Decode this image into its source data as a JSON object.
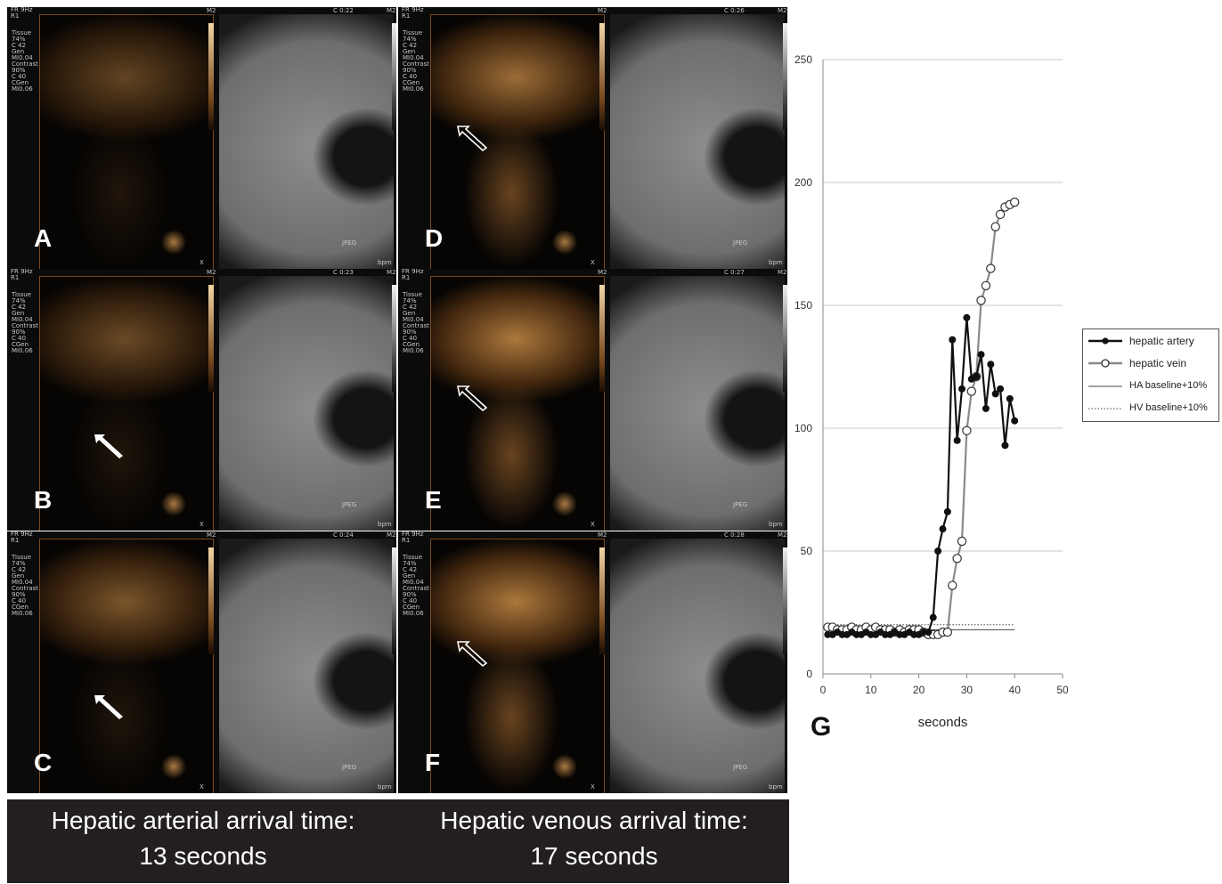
{
  "panels": [
    {
      "letter": "A",
      "clock": "C 0:22",
      "arrow": "none"
    },
    {
      "letter": "B",
      "clock": "C 0:23",
      "arrow": "solid"
    },
    {
      "letter": "C",
      "clock": "C 0:24",
      "arrow": "solid"
    },
    {
      "letter": "D",
      "clock": "C 0:26",
      "arrow": "hollow"
    },
    {
      "letter": "E",
      "clock": "C 0:27",
      "arrow": "hollow"
    },
    {
      "letter": "F",
      "clock": "C 0:28",
      "arrow": "hollow"
    }
  ],
  "scanner": {
    "frame_rate": "FR 9Hz",
    "r": "R1",
    "mode": "M2",
    "params": "Tissue\n74%\nC 42\nGen\nMI0.04\nContrast\n90%\nC 40\nCGen\nMI0.06",
    "jpeg": "JPEG",
    "bpm": "bpm",
    "x_mark": "X"
  },
  "caption": {
    "left": "Hepatic arterial arrival time:\n13 seconds",
    "right": "Hepatic venous arrival time:\n17 seconds"
  },
  "figure_label": "G",
  "colors": {
    "artery": "#111111",
    "vein": "#8a8a8a",
    "grid": "#c9c9c9",
    "panel_bg": "#0b0b0b",
    "caption_bg": "#231f20"
  },
  "chart_data": {
    "type": "line",
    "xlabel": "seconds",
    "ylabel": "",
    "xlim": [
      0,
      50
    ],
    "ylim": [
      0,
      250
    ],
    "xticks": [
      0,
      10,
      20,
      30,
      40,
      50
    ],
    "yticks": [
      0,
      50,
      100,
      150,
      200,
      250
    ],
    "grid": "horizontal",
    "legend_position": "right",
    "series": [
      {
        "name": "hepatic artery",
        "marker": "filled-circle",
        "x": [
          1,
          2,
          3,
          4,
          5,
          6,
          7,
          8,
          9,
          10,
          11,
          12,
          13,
          14,
          15,
          16,
          17,
          18,
          19,
          20,
          21,
          22,
          23,
          24,
          25,
          26,
          27,
          28,
          29,
          30,
          31,
          32,
          33,
          34,
          35,
          36,
          37,
          38,
          39,
          40
        ],
        "y": [
          16,
          16,
          17,
          16,
          16,
          17,
          16,
          16,
          17,
          16,
          16,
          17,
          16,
          16,
          17,
          16,
          16,
          17,
          16,
          16,
          17,
          17,
          23,
          50,
          59,
          66,
          136,
          95,
          116,
          145,
          120,
          121,
          130,
          108,
          126,
          114,
          116,
          93,
          112,
          103
        ]
      },
      {
        "name": "hepatic vein",
        "marker": "hollow-circle",
        "x": [
          1,
          2,
          3,
          4,
          5,
          6,
          7,
          8,
          9,
          10,
          11,
          12,
          13,
          14,
          15,
          16,
          17,
          18,
          19,
          20,
          21,
          22,
          23,
          24,
          25,
          26,
          27,
          28,
          29,
          30,
          31,
          32,
          33,
          34,
          35,
          36,
          37,
          38,
          39,
          40
        ],
        "y": [
          19,
          19,
          18,
          18,
          18,
          19,
          18,
          18,
          19,
          18,
          19,
          18,
          18,
          18,
          17,
          18,
          17,
          18,
          18,
          18,
          17,
          16,
          16,
          16,
          17,
          17,
          36,
          47,
          54,
          99,
          115,
          121,
          152,
          158,
          165,
          182,
          187,
          190,
          191,
          192
        ]
      },
      {
        "name": "HA baseline+10%",
        "style": "solid-thin",
        "x": [
          1,
          40
        ],
        "y": [
          18,
          18
        ]
      },
      {
        "name": "HV baseline+10%",
        "style": "dotted-thin",
        "x": [
          1,
          40
        ],
        "y": [
          20,
          20
        ]
      }
    ]
  }
}
